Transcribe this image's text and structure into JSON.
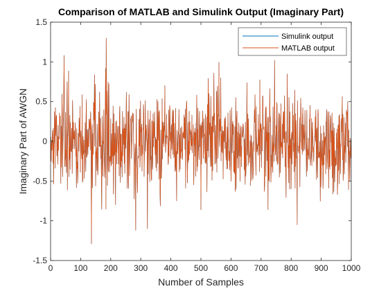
{
  "chart_data": {
    "type": "line",
    "title": "Comparison of MATLAB and Simulink Output (Imaginary Part)",
    "xlabel": "Number of Samples",
    "ylabel": "Imaginary Part of AWGN",
    "xlim": [
      0,
      1000
    ],
    "ylim": [
      -1.5,
      1.5
    ],
    "x_ticks": [
      "0",
      "100",
      "200",
      "300",
      "400",
      "500",
      "600",
      "700",
      "800",
      "900",
      "1000"
    ],
    "y_ticks": [
      "1.5",
      "1",
      "0.5",
      "0",
      "-0.5",
      "-1",
      "-1.5"
    ],
    "grid": false,
    "legend_position": "top-right",
    "series": [
      {
        "name": "Simulink output",
        "color": "#0072BD",
        "x_range": [
          0,
          1000
        ],
        "samples": 1001,
        "noise_std": 0.3,
        "visible_extremes": [
          [
            185,
            1.3
          ],
          [
            136,
            -1.29
          ],
          [
            45,
            1.08
          ],
          [
            283,
            -1.12
          ],
          [
            322,
            -1.1
          ],
          [
            745,
            1.02
          ],
          [
            820,
            -1.05
          ]
        ]
      },
      {
        "name": "MATLAB output",
        "color": "#D95319",
        "x_range": [
          0,
          1000
        ],
        "samples": 1001,
        "noise_std": 0.3,
        "visible_extremes": [
          [
            185,
            1.3
          ],
          [
            136,
            -1.29
          ],
          [
            45,
            1.08
          ],
          [
            283,
            -1.12
          ],
          [
            322,
            -1.1
          ],
          [
            745,
            1.02
          ],
          [
            820,
            -1.05
          ]
        ]
      }
    ]
  }
}
